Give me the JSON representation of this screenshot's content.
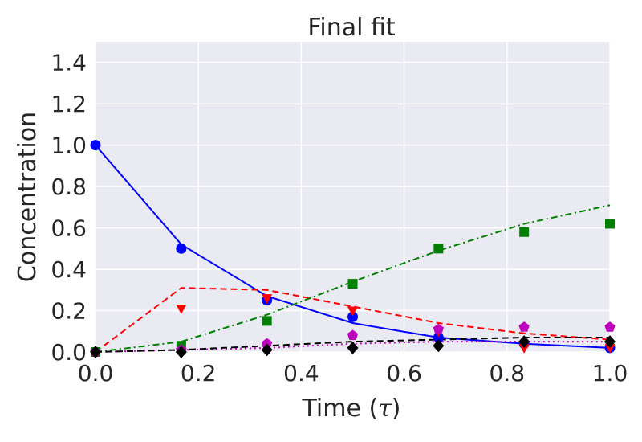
{
  "chart_data": {
    "type": "line",
    "title": "Final fit",
    "xlabel_text": "Time (",
    "xlabel_symbol": "τ",
    "xlabel_close": ")",
    "ylabel": "Concentration",
    "xlim": [
      0.0,
      1.0
    ],
    "ylim": [
      0.0,
      1.5
    ],
    "x_ticks": [
      0.0,
      0.2,
      0.4,
      0.6,
      0.8,
      1.0
    ],
    "x_tick_labels": [
      "0.0",
      "0.2",
      "0.4",
      "0.6",
      "0.8",
      "1.0"
    ],
    "y_ticks": [
      0.0,
      0.2,
      0.4,
      0.6,
      0.8,
      1.0,
      1.2,
      1.4
    ],
    "y_tick_labels": [
      "0.0",
      "0.2",
      "0.4",
      "0.6",
      "0.8",
      "1.0",
      "1.2",
      "1.4"
    ],
    "grid": true,
    "background": "#eaeaf2",
    "x": [
      0.0,
      0.1667,
      0.3333,
      0.5,
      0.6667,
      0.8333,
      1.0
    ],
    "series": [
      {
        "color": "#0000ff",
        "marker": "circle",
        "line_style": "solid",
        "points": [
          1.0,
          0.5,
          0.25,
          0.17,
          0.07,
          0.04,
          0.02
        ],
        "fit": [
          1.0,
          0.52,
          0.27,
          0.14,
          0.07,
          0.04,
          0.02
        ]
      },
      {
        "color": "#ff0000",
        "marker": "triangle-down",
        "line_style": "dashed",
        "points": [
          0.0,
          0.21,
          0.26,
          0.2,
          0.1,
          0.02,
          0.02
        ],
        "fit": [
          0.0,
          0.31,
          0.3,
          0.22,
          0.14,
          0.09,
          0.06
        ]
      },
      {
        "color": "#008000",
        "marker": "square",
        "line_style": "dashdot",
        "points": [
          0.0,
          0.03,
          0.15,
          0.33,
          0.5,
          0.58,
          0.62
        ],
        "fit": [
          0.0,
          0.05,
          0.18,
          0.34,
          0.49,
          0.62,
          0.71
        ]
      },
      {
        "color": "#bf00bf",
        "marker": "pentagon",
        "line_style": "dotted",
        "points": [
          0.0,
          0.01,
          0.04,
          0.08,
          0.11,
          0.12,
          0.12
        ],
        "fit": [
          0.0,
          0.01,
          0.02,
          0.04,
          0.05,
          0.05,
          0.05
        ]
      },
      {
        "color": "#000000",
        "marker": "diamond",
        "line_style": "dashed",
        "points": [
          0.0,
          0.0,
          0.01,
          0.02,
          0.03,
          0.05,
          0.05
        ],
        "fit": [
          0.0,
          0.01,
          0.03,
          0.05,
          0.06,
          0.07,
          0.07
        ]
      }
    ]
  }
}
